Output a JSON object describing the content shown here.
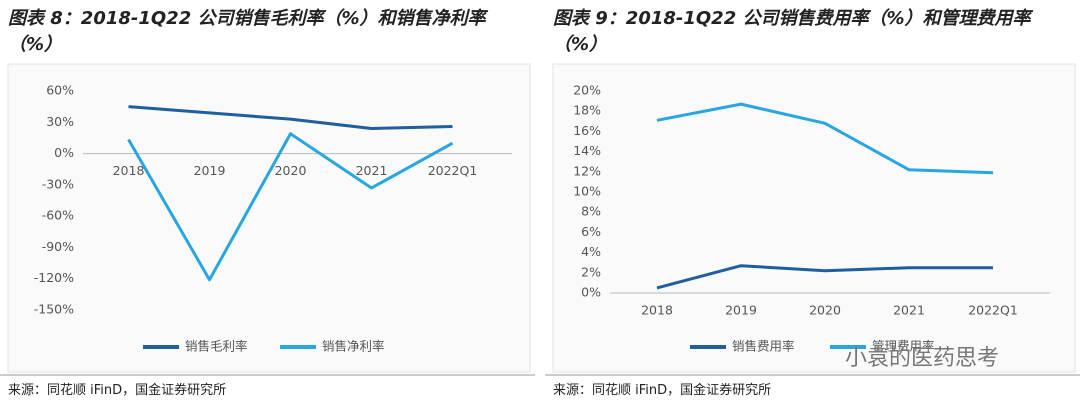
{
  "chart_data": [
    {
      "type": "line",
      "title": "图表 8：2018-1Q22 公司销售毛利率（%）和销售净利率（%）",
      "categories": [
        "2018",
        "2019",
        "2020",
        "2021",
        "2022Q1"
      ],
      "series": [
        {
          "name": "销售毛利率",
          "color": "#1f5f9f",
          "values": [
            45,
            39,
            33,
            24,
            26
          ]
        },
        {
          "name": "销售净利率",
          "color": "#27a6e3",
          "values": [
            13.5,
            -121,
            19,
            -33,
            10
          ]
        }
      ],
      "ylim": [
        -150,
        60
      ],
      "yticks": [
        {
          "value": 60,
          "label": "60%"
        },
        {
          "value": 30,
          "label": "30%"
        },
        {
          "value": 0,
          "label": "0%"
        },
        {
          "value": -30,
          "label": "-30%"
        },
        {
          "value": -60,
          "label": "-60%"
        },
        {
          "value": -90,
          "label": "-90%"
        },
        {
          "value": -120,
          "label": "-120%"
        },
        {
          "value": -150,
          "label": "-150%"
        }
      ],
      "source": "来源：同花顺 iFinD，国金证券研究所"
    },
    {
      "type": "line",
      "title": "图表 9：2018-1Q22 公司销售费用率（%）和管理费用率（%）",
      "categories": [
        "2018",
        "2019",
        "2020",
        "2021",
        "2022Q1"
      ],
      "series": [
        {
          "name": "销售费用率",
          "color": "#1f5f9f",
          "values": [
            0.5,
            2.7,
            2.2,
            2.5,
            2.5
          ]
        },
        {
          "name": "管理费用率",
          "color": "#27a6e3",
          "values": [
            17.1,
            18.7,
            16.8,
            12.2,
            11.9
          ]
        }
      ],
      "ylim": [
        0,
        20
      ],
      "yticks": [
        {
          "value": 0,
          "label": "0%"
        },
        {
          "value": 2,
          "label": "2%"
        },
        {
          "value": 4,
          "label": "4%"
        },
        {
          "value": 6,
          "label": "6%"
        },
        {
          "value": 8,
          "label": "8%"
        },
        {
          "value": 10,
          "label": "10%"
        },
        {
          "value": 12,
          "label": "12%"
        },
        {
          "value": 14,
          "label": "14%"
        },
        {
          "value": 16,
          "label": "16%"
        },
        {
          "value": 18,
          "label": "18%"
        },
        {
          "value": 20,
          "label": "20%"
        }
      ],
      "source": "来源：同花顺 iFinD，国金证券研究所"
    }
  ],
  "watermark": "小袁的医药思考"
}
